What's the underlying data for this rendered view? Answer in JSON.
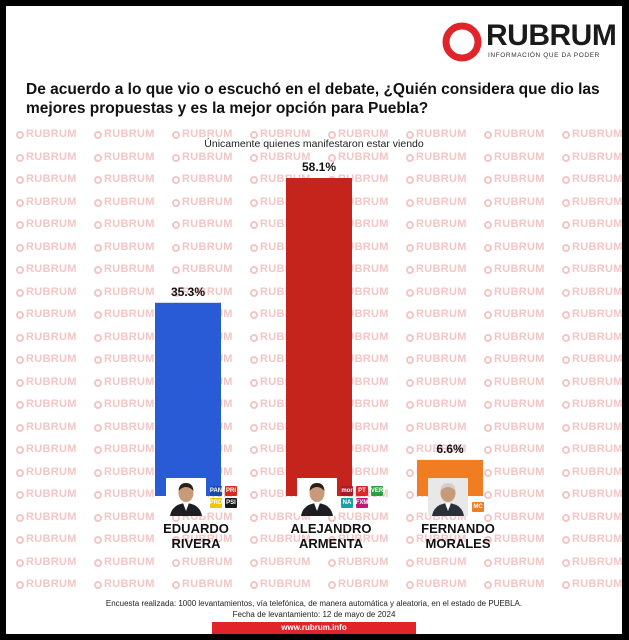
{
  "brand": {
    "name": "RUBRUM",
    "tagline": "INFORMACIÓN QUE DA PODER",
    "color": "#e0242a"
  },
  "question": "De acuerdo a lo que vio o escuchó en el debate, ¿Quién considera que dio las mejores propuestas y es la mejor opción para Puebla?",
  "subtitle": "Únicamente quienes manifestaron estar viendo",
  "watermark_text": "RUBRUM",
  "chart_data": {
    "type": "bar",
    "categories": [
      "EDUARDO RIVERA",
      "ALEJANDRO ARMENTA",
      "FERNANDO MORALES"
    ],
    "values": [
      35.3,
      58.1,
      6.6
    ],
    "value_labels": [
      "35.3%",
      "58.1%",
      "6.6%"
    ],
    "colors": [
      "#2a5bd7",
      "#c4241c",
      "#f07d22"
    ],
    "ylim": [
      0,
      60
    ],
    "grid": false,
    "legend": "none"
  },
  "candidates": [
    {
      "first": "EDUARDO",
      "last": "RIVERA",
      "parties": [
        "PAN",
        "PRI",
        "PRD",
        "PSI"
      ]
    },
    {
      "first": "ALEJANDRO",
      "last": "ARMENTA",
      "parties": [
        "morena",
        "PT",
        "VERDE",
        "NA",
        "FXM"
      ]
    },
    {
      "first": "FERNANDO",
      "last": "MORALES",
      "parties": [
        "MC"
      ]
    }
  ],
  "footer": {
    "line1": "Encuesta realizada: 1000 levantamientos, vía telefónica, de manera automática y aleatoria, en el estado de PUEBLA.",
    "line2": "Fecha de levantamiento: 12 de mayo de 2024",
    "url": "www.rubrum.info"
  }
}
